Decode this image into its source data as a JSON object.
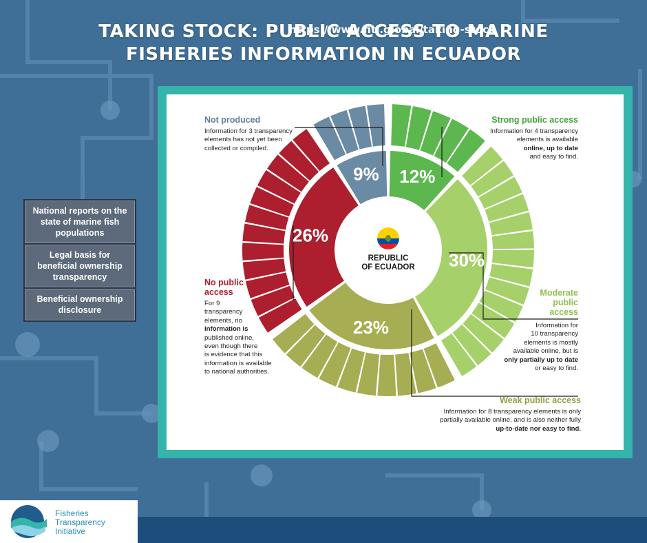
{
  "title_line1": "TAKING STOCK: PUBLIC ACCESS TO MARINE",
  "title_line2": "FISHERIES INFORMATION IN ECUADOR",
  "sidebar": {
    "items": [
      "National reports on the state of marine fish populations",
      "Legal basis for beneficial ownership transparency",
      "Beneficial ownership disclosure"
    ]
  },
  "center": {
    "line1": "REPUBLIC",
    "line2": "OF ECUADOR"
  },
  "colors": {
    "strong": "#5cb74e",
    "moderate": "#a5d06a",
    "weak": "#a6ad52",
    "none": "#ad1f2e",
    "not_produced": "#6b8aa3",
    "frame": "#35b4ab",
    "background": "#3f6e96"
  },
  "categories": {
    "not_produced": {
      "title": "Not produced",
      "desc": [
        "Information for 3 transparency",
        "elements has not yet been",
        "collected or compiled."
      ]
    },
    "strong": {
      "title": "Strong public access",
      "desc": [
        "Information for 4 transparency",
        "elements is available",
        "online, up to date",
        "and easy to find."
      ]
    },
    "moderate": {
      "title1": "Moderate",
      "title2": "public",
      "title3": "access",
      "desc": [
        "Information for",
        "10 transparency",
        "elements is mostly",
        "available online, but is",
        "only partially up to date",
        "or easy to find."
      ]
    },
    "weak": {
      "title": "Weak public access",
      "desc": [
        "Information for 8 transparency elements is only",
        "partially available online, and is also neither fully",
        "up-to-date nor easy to find."
      ]
    },
    "none": {
      "title1": "No public",
      "title2": "access",
      "desc": [
        "For 9",
        "transparency",
        "elements, no",
        "information is",
        "published online,",
        "even though there",
        "is evidence that this",
        "information is available",
        "to national authorities."
      ]
    }
  },
  "chart_data": {
    "type": "pie",
    "slices": [
      {
        "name": "Strong public access",
        "percent": 12,
        "label": "12%",
        "elements": 4
      },
      {
        "name": "Moderate public access",
        "percent": 30,
        "label": "30%",
        "elements": 10
      },
      {
        "name": "Weak public access",
        "percent": 23,
        "label": "23%",
        "elements": 8
      },
      {
        "name": "No public access",
        "percent": 26,
        "label": "26%",
        "elements": 9
      },
      {
        "name": "Not produced",
        "percent": 9,
        "label": "9%",
        "elements": 3
      }
    ]
  },
  "footer": {
    "url": "https://www.fiti.global/taking-stock",
    "logo_line1": "Fisheries",
    "logo_line2": "Transparency",
    "logo_line3": "Initiative"
  }
}
